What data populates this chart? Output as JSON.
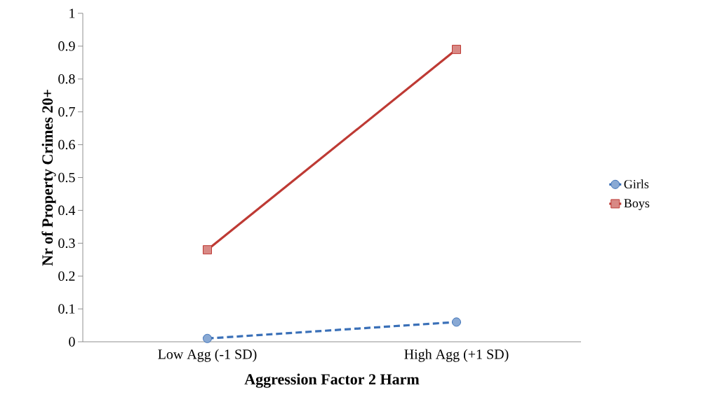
{
  "chart_data": {
    "type": "line",
    "xlabel": "Aggression Factor 2 Harm",
    "ylabel": "Nr of Property Crimes 20+",
    "categories": [
      "Low Agg (-1 SD)",
      "High Agg (+1 SD)"
    ],
    "series": [
      {
        "name": "Girls",
        "color": "#3a70b8",
        "values": [
          0.01,
          0.06
        ],
        "marker": "circle",
        "line_style": "dashed"
      },
      {
        "name": "Boys",
        "color": "#be3a34",
        "values": [
          0.28,
          0.89
        ],
        "marker": "square",
        "line_style": "solid"
      }
    ],
    "ylim": [
      0,
      1
    ],
    "yticks": [
      0,
      0.1,
      0.2,
      0.3,
      0.4,
      0.5,
      0.6,
      0.7,
      0.8,
      0.9,
      1
    ],
    "grid": false,
    "legend": "right"
  }
}
